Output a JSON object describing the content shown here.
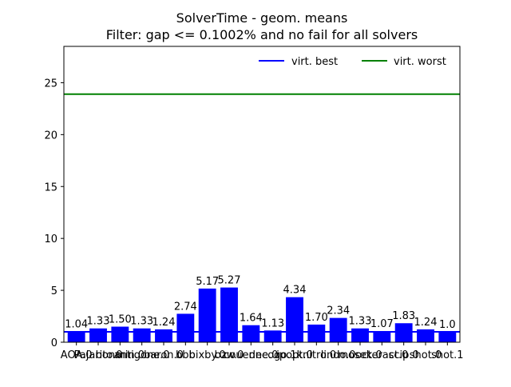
{
  "chart_data": {
    "type": "bar",
    "title": "SolverTime - geom. means",
    "subtitle": "Filter: gap <= 0.1002% and no fail for all solvers",
    "xlabel": "",
    "ylabel": "",
    "ylim": [
      0,
      28.5
    ],
    "yticks": [
      0,
      5,
      10,
      15,
      20,
      25
    ],
    "ytick_labels": [
      "0",
      "5",
      "10",
      "15",
      "20",
      "25"
    ],
    "grid": false,
    "legend_position": "top-right",
    "categories": [
      "AOA.0",
      "Pajarito.0",
      "bonmin.0",
      "antigone.0",
      "baron.0",
      "bbb",
      "bixby.0",
      "bzw.0",
      "couenne.0",
      "decogo.1",
      "ipopt.0",
      "knitro.0",
      "lindo.0",
      "mosek.0",
      "octeract.0",
      "scip.0",
      "shot.0",
      "shot.1"
    ],
    "values": [
      1.04,
      1.33,
      1.5,
      1.33,
      1.24,
      2.74,
      5.17,
      5.27,
      1.64,
      1.13,
      4.34,
      1.7,
      2.34,
      1.33,
      1.07,
      1.83,
      1.24,
      1.0
    ],
    "value_labels": [
      "1.04",
      "1.33",
      "1.50",
      "1.33",
      "1.24",
      "2.74",
      "5.17",
      "5.27",
      "1.64",
      "1.13",
      "4.34",
      "1.70",
      "2.34",
      "1.33",
      "1.07",
      "1.83",
      "1.24",
      "1.0"
    ],
    "bar_color": "#0000ff",
    "reference_lines": [
      {
        "name": "virt. best",
        "value": 1.0,
        "color": "#0000ff"
      },
      {
        "name": "virt. worst",
        "value": 23.9,
        "color": "#008000"
      }
    ]
  }
}
